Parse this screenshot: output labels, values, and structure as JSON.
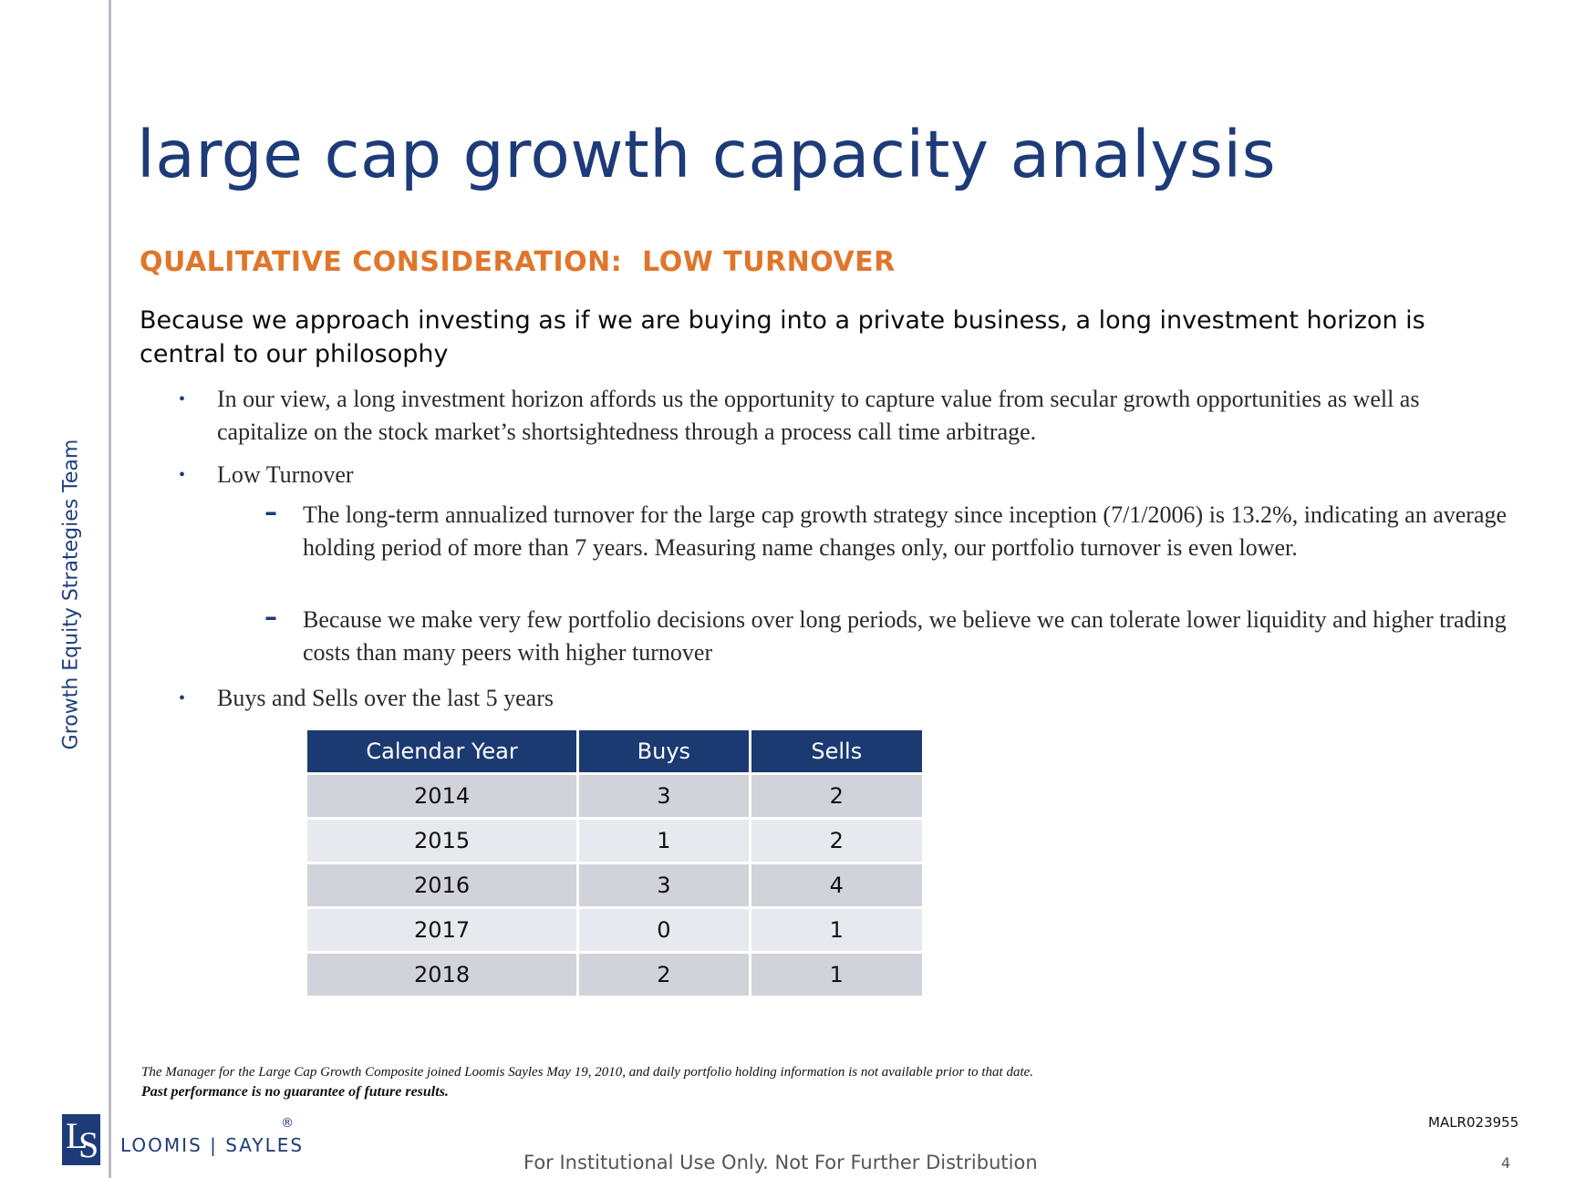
{
  "side_label": "Growth Equity Strategies Team",
  "title": "large cap growth capacity analysis",
  "subhead": "QUALITATIVE CONSIDERATION:  LOW TURNOVER",
  "lead": "Because we approach investing as if we are buying into a private business, a long investment horizon is central to our philosophy",
  "bullets": [
    {
      "text": "In our view, a long investment horizon affords us the opportunity to capture value from secular growth opportunities as well as capitalize on the stock market’s shortsightedness through a process call time arbitrage."
    },
    {
      "text": "Low Turnover"
    },
    {
      "text": "Buys and Sells over the last 5 years"
    }
  ],
  "sub_bullets": [
    {
      "text": "The long-term annualized turnover for the large cap growth strategy since inception (7/1/2006) is 13.2%, indicating an average holding period of more than 7 years.  Measuring name changes only, our portfolio turnover is even lower."
    },
    {
      "text": "Because we make very few portfolio decisions over long periods, we believe we can tolerate lower liquidity and higher trading costs than many peers with higher turnover"
    }
  ],
  "table": {
    "headers": [
      "Calendar Year",
      "Buys",
      "Sells"
    ],
    "rows": [
      [
        "2014",
        "3",
        "2"
      ],
      [
        "2015",
        "1",
        "2"
      ],
      [
        "2016",
        "3",
        "4"
      ],
      [
        "2017",
        "0",
        "1"
      ],
      [
        "2018",
        "2",
        "1"
      ]
    ]
  },
  "footnote": "The Manager for the Large Cap Growth Composite joined Loomis Sayles May 19, 2010, and daily portfolio holding information is not available prior to that date.",
  "disclaimer": "Past performance is no guarantee of future results.",
  "logo": {
    "mark": "LS",
    "text": "LOOMIS | SAYLES",
    "reg": "®"
  },
  "doc_id": "MALR023955",
  "footer": "For Institutional Use Only. Not For Further Distribution",
  "page_number": "4",
  "colors": {
    "title": "#1d3b78",
    "subhead": "#e0762b",
    "table_header": "#1b3a72"
  }
}
